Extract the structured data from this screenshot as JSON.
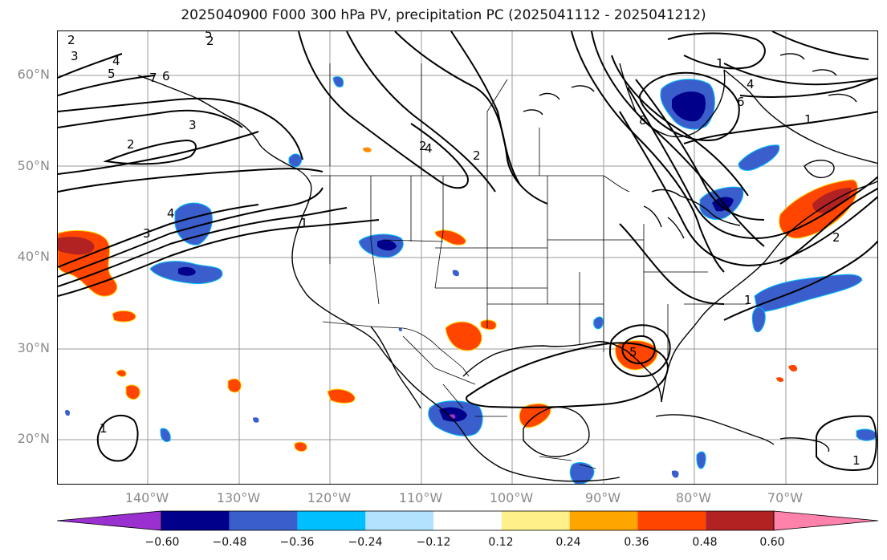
{
  "title": "2025040900 F000 300 hPa PV, precipitation PC (2025041112 - 2025041212)",
  "latitude_labels": [
    "60°N",
    "50°N",
    "40°N",
    "30°N",
    "20°N"
  ],
  "longitude_labels": [
    "140°W",
    "130°W",
    "120°W",
    "110°W",
    "100°W",
    "90°W",
    "80°W",
    "70°W"
  ],
  "colorbar": {
    "tick_labels": [
      "−0.60",
      "−0.48",
      "−0.36",
      "−0.24",
      "−0.12",
      "0.12",
      "0.24",
      "0.36",
      "0.48",
      "0.60"
    ],
    "colors": [
      "#9b30d0",
      "#00008b",
      "#3a5fcd",
      "#00bfff",
      "#b2e2ff",
      "#ffffff",
      "#fff08a",
      "#ffa500",
      "#ff4500",
      "#b22222",
      "#ff82ab"
    ]
  },
  "contour_labels": [
    "2",
    "3",
    "4",
    "5",
    "7",
    "6",
    "3",
    "2",
    "4",
    "2",
    "5",
    "1",
    "3",
    "4",
    "8",
    "6",
    "4",
    "2",
    "1",
    "1",
    "2",
    "1",
    "1",
    "1",
    "5",
    "2"
  ],
  "chart_data": {
    "type": "map",
    "projection": "lat-lon",
    "lon_range": [
      -150,
      -60
    ],
    "lat_range": [
      15,
      65
    ],
    "gridlines": true,
    "contour_field": "300 hPa PV",
    "shaded_field": "precipitation PC",
    "colorbar_levels": [
      -0.6,
      -0.48,
      -0.36,
      -0.24,
      -0.12,
      0.12,
      0.24,
      0.36,
      0.48,
      0.6
    ]
  }
}
